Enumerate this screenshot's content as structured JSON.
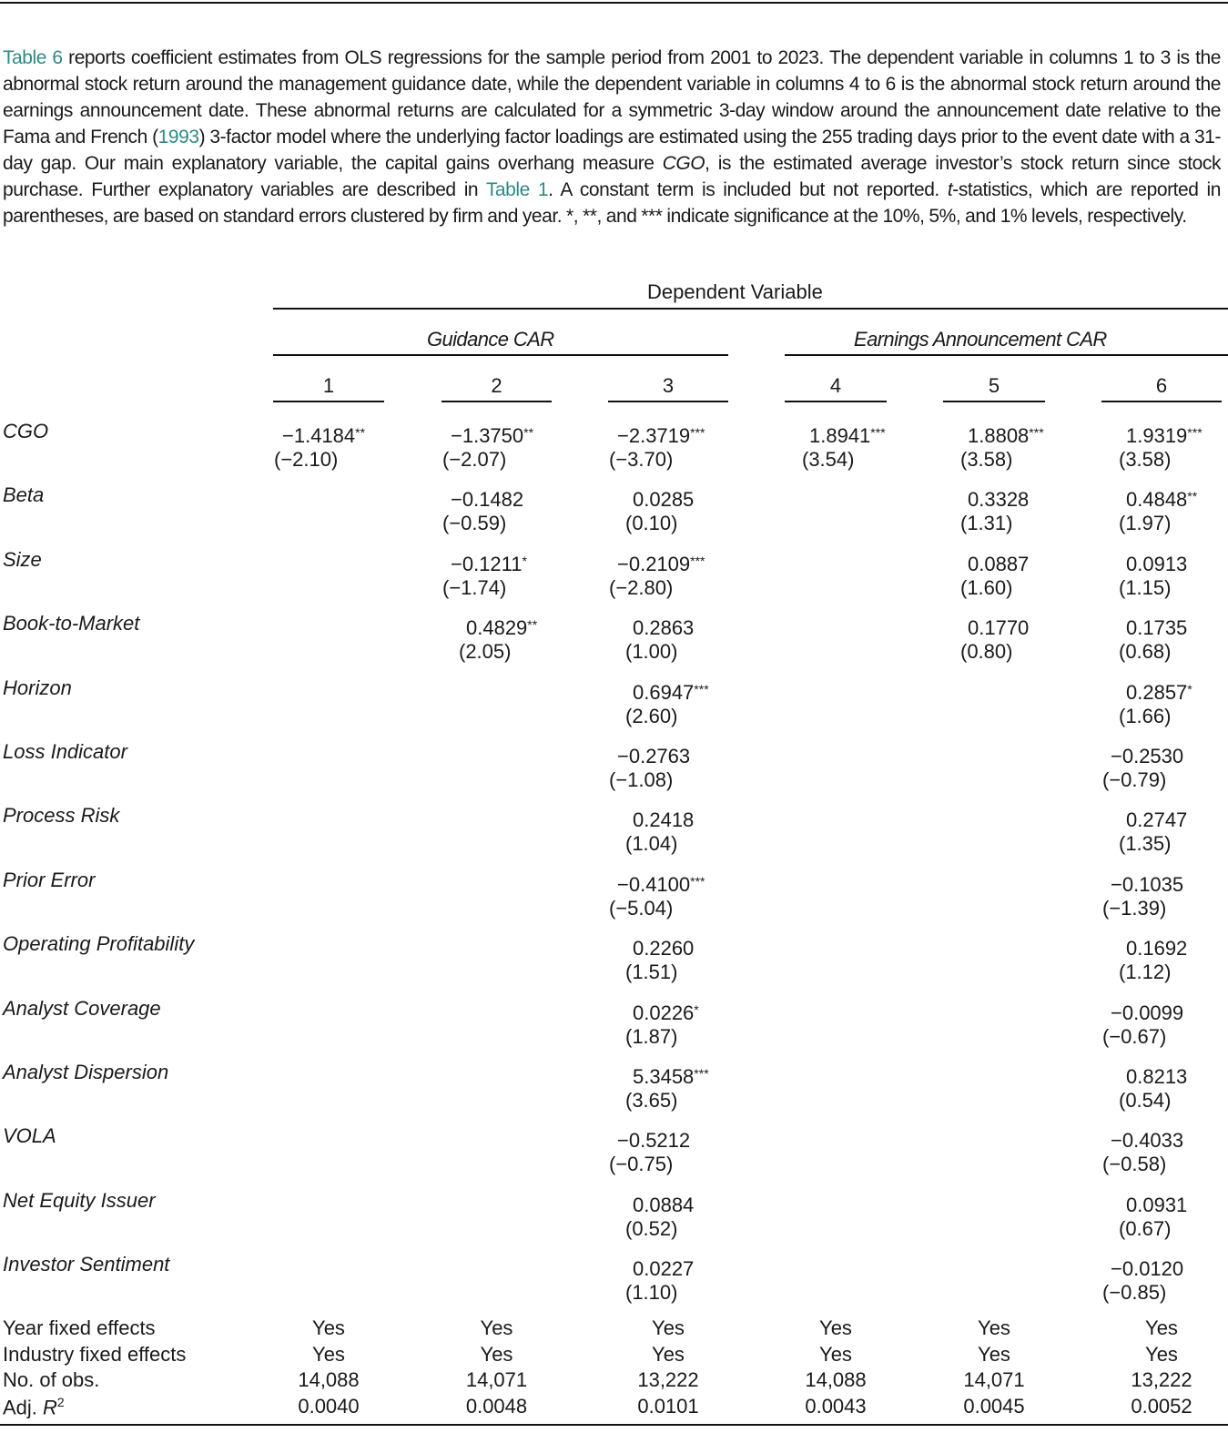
{
  "caption": {
    "link_table6": "Table 6",
    "text1": " reports coefficient estimates from OLS regressions for the sample period from 2001 to 2023. The dependent variable in columns 1 to 3 is the abnormal stock return around the management guidance date, while the dependent variable in columns 4 to 6 is the abnormal stock return around the earnings announcement date. These abnormal returns are calculated for a symmetric 3-day window around the announcement date relative to the Fama and French (",
    "link_1993": "1993",
    "text2": ") 3-factor model where the underlying factor loadings are estimated using the 255 trading days prior to the event date with a 31-day gap. Our main explanatory variable, the capital gains overhang measure ",
    "cgo": "CGO",
    "text3": ", is the estimated average investor’s stock return since stock purchase. Further explanatory variables are described in ",
    "link_table1": "Table 1",
    "text4": ". A constant term is included but not reported. ",
    "t": "t",
    "text5": "-statistics, which are reported in parentheses, are based on standard errors clustered by firm and year. *, **, and *** indicate significance at the 10%, 5%, and 1% levels, respectively.",
    "link_color": "#2f8a84"
  },
  "table": {
    "dependent_header": "Dependent Variable",
    "groups": [
      "Guidance CAR",
      "Earnings Announcement CAR"
    ],
    "columns": [
      "1",
      "2",
      "3",
      "4",
      "5",
      "6"
    ],
    "rows": [
      {
        "label": "CGO",
        "coef": [
          "−1.4184",
          "−1.3750",
          "−2.3719",
          "1.8941",
          "1.8808",
          "1.9319"
        ],
        "stars": [
          "**",
          "**",
          "***",
          "***",
          "***",
          "***"
        ],
        "tstat": [
          "(−2.10)",
          "(−2.07)",
          "(−3.70)",
          "(3.54)",
          "(3.58)",
          "(3.58)"
        ]
      },
      {
        "label": "Beta",
        "coef": [
          "",
          "−0.1482",
          "0.0285",
          "",
          "0.3328",
          "0.4848"
        ],
        "stars": [
          "",
          "",
          "",
          "",
          "",
          "**"
        ],
        "tstat": [
          "",
          "(−0.59)",
          "(0.10)",
          "",
          "(1.31)",
          "(1.97)"
        ]
      },
      {
        "label": "Size",
        "coef": [
          "",
          "−0.1211",
          "−0.2109",
          "",
          "0.0887",
          "0.0913"
        ],
        "stars": [
          "",
          "*",
          "***",
          "",
          "",
          ""
        ],
        "tstat": [
          "",
          "(−1.74)",
          "(−2.80)",
          "",
          "(1.60)",
          "(1.15)"
        ]
      },
      {
        "label": "Book-to-Market",
        "coef": [
          "",
          "0.4829",
          "0.2863",
          "",
          "0.1770",
          "0.1735"
        ],
        "stars": [
          "",
          "**",
          "",
          "",
          "",
          ""
        ],
        "tstat": [
          "",
          "(2.05)",
          "(1.00)",
          "",
          "(0.80)",
          "(0.68)"
        ]
      },
      {
        "label": "Horizon",
        "coef": [
          "",
          "",
          "0.6947",
          "",
          "",
          "0.2857"
        ],
        "stars": [
          "",
          "",
          "***",
          "",
          "",
          "*"
        ],
        "tstat": [
          "",
          "",
          "(2.60)",
          "",
          "",
          "(1.66)"
        ]
      },
      {
        "label": "Loss Indicator",
        "coef": [
          "",
          "",
          "−0.2763",
          "",
          "",
          "−0.2530"
        ],
        "stars": [
          "",
          "",
          "",
          "",
          "",
          ""
        ],
        "tstat": [
          "",
          "",
          "(−1.08)",
          "",
          "",
          "(−0.79)"
        ]
      },
      {
        "label": "Process Risk",
        "coef": [
          "",
          "",
          "0.2418",
          "",
          "",
          "0.2747"
        ],
        "stars": [
          "",
          "",
          "",
          "",
          "",
          ""
        ],
        "tstat": [
          "",
          "",
          "(1.04)",
          "",
          "",
          "(1.35)"
        ]
      },
      {
        "label": "Prior Error",
        "coef": [
          "",
          "",
          "−0.4100",
          "",
          "",
          "−0.1035"
        ],
        "stars": [
          "",
          "",
          "***",
          "",
          "",
          ""
        ],
        "tstat": [
          "",
          "",
          "(−5.04)",
          "",
          "",
          "(−1.39)"
        ]
      },
      {
        "label": "Operating Profitability",
        "coef": [
          "",
          "",
          "0.2260",
          "",
          "",
          "0.1692"
        ],
        "stars": [
          "",
          "",
          "",
          "",
          "",
          ""
        ],
        "tstat": [
          "",
          "",
          "(1.51)",
          "",
          "",
          "(1.12)"
        ]
      },
      {
        "label": "Analyst Coverage",
        "coef": [
          "",
          "",
          "0.0226",
          "",
          "",
          "−0.0099"
        ],
        "stars": [
          "",
          "",
          "*",
          "",
          "",
          ""
        ],
        "tstat": [
          "",
          "",
          "(1.87)",
          "",
          "",
          "(−0.67)"
        ]
      },
      {
        "label": "Analyst Dispersion",
        "coef": [
          "",
          "",
          "5.3458",
          "",
          "",
          "0.8213"
        ],
        "stars": [
          "",
          "",
          "***",
          "",
          "",
          ""
        ],
        "tstat": [
          "",
          "",
          "(3.65)",
          "",
          "",
          "(0.54)"
        ]
      },
      {
        "label": "VOLA",
        "coef": [
          "",
          "",
          "−0.5212",
          "",
          "",
          "−0.4033"
        ],
        "stars": [
          "",
          "",
          "",
          "",
          "",
          ""
        ],
        "tstat": [
          "",
          "",
          "(−0.75)",
          "",
          "",
          "(−0.58)"
        ]
      },
      {
        "label": "Net Equity Issuer",
        "coef": [
          "",
          "",
          "0.0884",
          "",
          "",
          "0.0931"
        ],
        "stars": [
          "",
          "",
          "",
          "",
          "",
          ""
        ],
        "tstat": [
          "",
          "",
          "(0.52)",
          "",
          "",
          "(0.67)"
        ]
      },
      {
        "label": "Investor Sentiment",
        "coef": [
          "",
          "",
          "0.0227",
          "",
          "",
          "−0.0120"
        ],
        "stars": [
          "",
          "",
          "",
          "",
          "",
          ""
        ],
        "tstat": [
          "",
          "",
          "(1.10)",
          "",
          "",
          "(−0.85)"
        ]
      }
    ],
    "footer": [
      {
        "label": "Year fixed effects",
        "values": [
          "Yes",
          "Yes",
          "Yes",
          "Yes",
          "Yes",
          "Yes"
        ]
      },
      {
        "label": "Industry fixed effects",
        "values": [
          "Yes",
          "Yes",
          "Yes",
          "Yes",
          "Yes",
          "Yes"
        ]
      },
      {
        "label": "No. of obs.",
        "values": [
          "14,088",
          "14,071",
          "13,222",
          "14,088",
          "14,071",
          "13,222"
        ]
      },
      {
        "label": "Adj. ",
        "label_sym": "R",
        "label_sup": "2",
        "values": [
          "0.0040",
          "0.0048",
          "0.0101",
          "0.0043",
          "0.0045",
          "0.0052"
        ]
      }
    ]
  }
}
